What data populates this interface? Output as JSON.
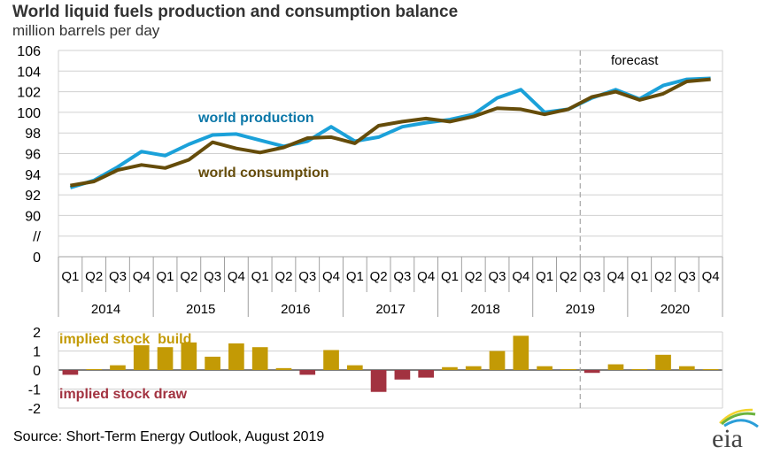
{
  "header": {
    "title": "World liquid fuels production and consumption balance",
    "subtitle": "million barrels per day"
  },
  "footer": {
    "source": "Source: Short-Term Energy Outlook, August 2019",
    "logo_text": "eia"
  },
  "colors": {
    "production": "#1BA1D9",
    "production_label": "#0B77A8",
    "consumption": "#654C0A",
    "build": "#C39A05",
    "draw": "#A23240",
    "grid": "#D0D0D0",
    "forecast_line": "#A6A6A6"
  },
  "chart_data": [
    {
      "type": "line",
      "title": "World liquid fuels production and consumption balance",
      "ylabel": "million barrels per day",
      "xlabel": "",
      "ylim": [
        90,
        106
      ],
      "yticks": [
        "106",
        "104",
        "102",
        "100",
        "98",
        "96",
        "94",
        "92",
        "90",
        "//",
        "0"
      ],
      "axis_break": true,
      "grid": true,
      "quarters": [
        "Q1",
        "Q2",
        "Q3",
        "Q4",
        "Q1",
        "Q2",
        "Q3",
        "Q4",
        "Q1",
        "Q2",
        "Q3",
        "Q4",
        "Q1",
        "Q2",
        "Q3",
        "Q4",
        "Q1",
        "Q2",
        "Q3",
        "Q4",
        "Q1",
        "Q2",
        "Q3",
        "Q4",
        "Q1",
        "Q2",
        "Q3",
        "Q4"
      ],
      "years": [
        "2014",
        "2015",
        "2016",
        "2017",
        "2018",
        "2019",
        "2020"
      ],
      "forecast_label": "forecast",
      "forecast_start_index": 22,
      "series": [
        {
          "name": "world production",
          "values": [
            92.7,
            93.4,
            94.7,
            96.2,
            95.8,
            96.9,
            97.8,
            97.9,
            97.3,
            96.7,
            97.2,
            98.6,
            97.2,
            97.6,
            98.6,
            99.0,
            99.3,
            99.8,
            101.4,
            102.2,
            100.0,
            100.3,
            101.4,
            102.2,
            101.3,
            102.6,
            103.2,
            103.3
          ]
        },
        {
          "name": "world consumption",
          "values": [
            92.9,
            93.3,
            94.4,
            94.9,
            94.6,
            95.4,
            97.1,
            96.5,
            96.1,
            96.6,
            97.5,
            97.6,
            97.0,
            98.7,
            99.1,
            99.4,
            99.1,
            99.6,
            100.4,
            100.3,
            99.8,
            100.3,
            101.5,
            102.0,
            101.2,
            101.8,
            103.0,
            103.2
          ]
        }
      ]
    },
    {
      "type": "bar",
      "title": "",
      "ylim": [
        -2,
        2
      ],
      "yticks": [
        "2",
        "1",
        "0",
        "-1",
        "-2"
      ],
      "grid": true,
      "labels": {
        "build": "implied stock  build",
        "draw": "implied stock draw"
      },
      "series": [
        {
          "name": "implied stock change",
          "values": [
            -0.25,
            0.05,
            0.25,
            1.3,
            1.2,
            1.45,
            0.7,
            1.4,
            1.2,
            0.1,
            -0.25,
            1.05,
            0.25,
            -1.15,
            -0.5,
            -0.4,
            0.15,
            0.2,
            1.0,
            1.8,
            0.2,
            0.05,
            -0.15,
            0.3,
            0.05,
            0.8,
            0.2,
            0.05
          ]
        }
      ]
    }
  ]
}
